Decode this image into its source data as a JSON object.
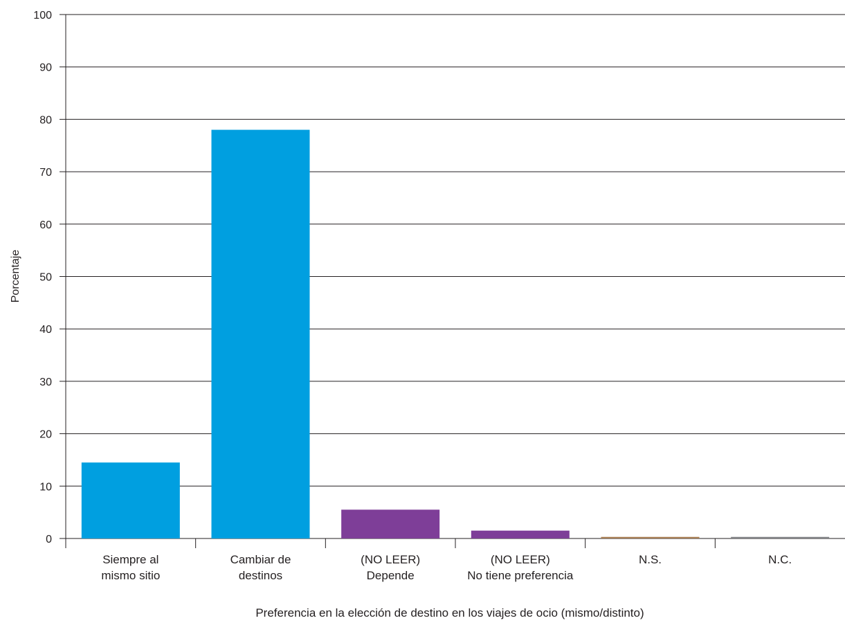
{
  "chart_data": {
    "type": "bar",
    "title": "",
    "xlabel": "Preferencia en la elección de destino en los viajes de ocio (mismo/distinto)",
    "ylabel": "Porcentaje",
    "ylim": [
      0,
      100
    ],
    "yticks": [
      "0",
      "10",
      "20",
      "30",
      "40",
      "50",
      "60",
      "70",
      "80",
      "90",
      "100"
    ],
    "grid": true,
    "categories": [
      [
        "Siempre al",
        "mismo sitio"
      ],
      [
        "Cambiar de",
        "destinos"
      ],
      [
        "(NO LEER)",
        "Depende"
      ],
      [
        "(NO LEER)",
        "No tiene preferencia"
      ],
      [
        "N.S."
      ],
      [
        "N.C."
      ]
    ],
    "values": [
      14.5,
      78,
      5.5,
      1.5,
      0.3,
      0.3
    ],
    "colors": [
      "#009fe0",
      "#009fe0",
      "#7e3e98",
      "#7e3e98",
      "#a67c52",
      "#808285"
    ]
  }
}
